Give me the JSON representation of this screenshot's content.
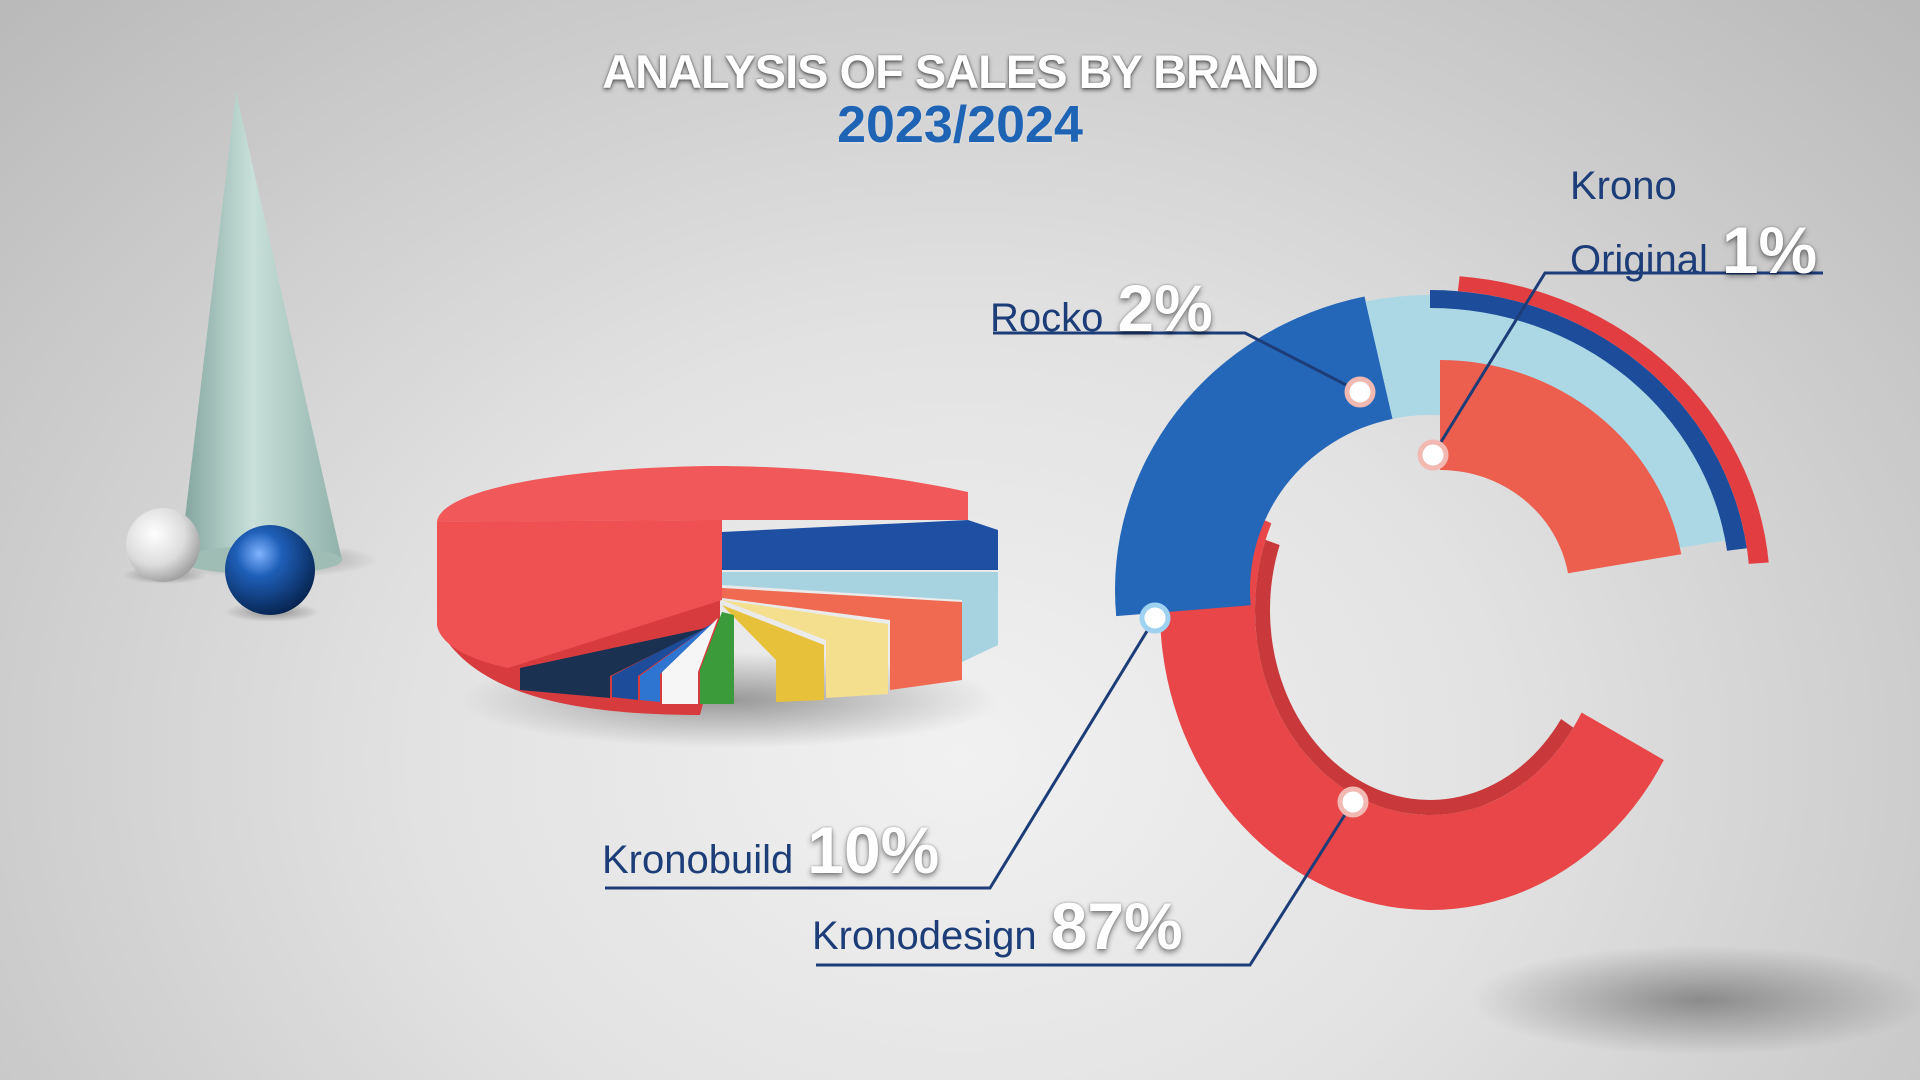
{
  "title": "ANALYSIS OF SALES BY BRAND",
  "subtitle": "2023/2024",
  "chart_data": {
    "type": "pie",
    "title": "ANALYSIS OF SALES BY BRAND",
    "subtitle": "2023/2024",
    "series": [
      {
        "name": "Kronodesign",
        "value": 87,
        "label": "87%",
        "color": "#e8474a"
      },
      {
        "name": "Kronobuild",
        "value": 10,
        "label": "10%",
        "color": "#2466b8"
      },
      {
        "name": "Rocko",
        "value": 2,
        "label": "2%",
        "color": "#a8d6e4"
      },
      {
        "name": "Krono Original",
        "value": 1,
        "label": "1%",
        "color": "#ec5e4e"
      }
    ]
  },
  "labels": {
    "rocko": {
      "name": "Rocko",
      "pct": "2%"
    },
    "krono_original": {
      "line1": "Krono",
      "line2": "Original",
      "pct": "1%"
    },
    "kronobuild": {
      "name": "Kronobuild",
      "pct": "10%"
    },
    "kronodesign": {
      "name": "Kronodesign",
      "pct": "87%"
    }
  }
}
